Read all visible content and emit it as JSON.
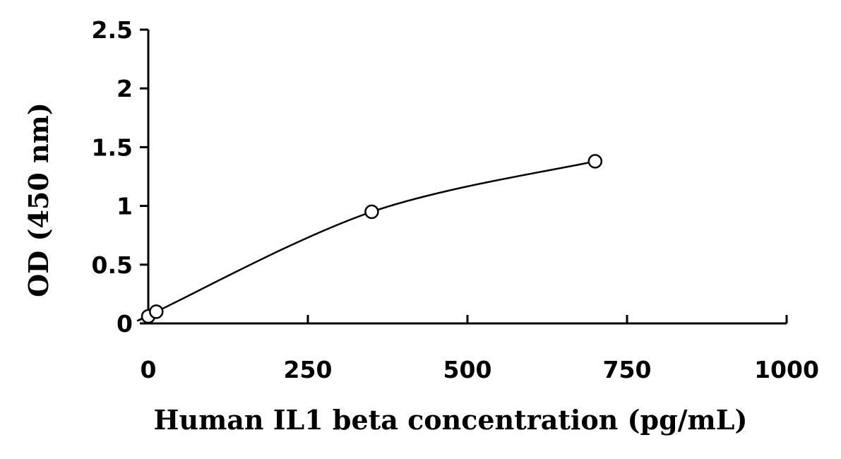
{
  "chart_data": {
    "type": "scatter",
    "xlabel": "Human IL1 beta concentration (pg/mL)",
    "ylabel": "OD (450 nm)",
    "xlim": [
      0,
      1000
    ],
    "ylim": [
      0,
      2.5
    ],
    "x_ticks": [
      "0",
      "250",
      "500",
      "750",
      "1000"
    ],
    "y_ticks": [
      "0",
      "0.5",
      "1",
      "1.5",
      "2",
      "2.5"
    ],
    "grid": false,
    "legend": "none",
    "series": [
      {
        "points": [
          {
            "x": 0,
            "y": 0.06
          },
          {
            "x": 12.5,
            "y": 0.1
          },
          {
            "x": 350,
            "y": 0.95
          },
          {
            "x": 700,
            "y": 1.38
          }
        ],
        "marker": "open-circle",
        "fit": "smooth-curve"
      }
    ]
  }
}
